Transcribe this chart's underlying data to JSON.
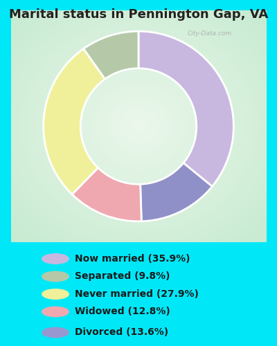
{
  "title": "Marital status in Pennington Gap, VA",
  "values": [
    35.9,
    13.6,
    12.8,
    27.9,
    9.8
  ],
  "pie_colors": [
    "#c8b8e0",
    "#9090c8",
    "#f0a8b0",
    "#f0f09a",
    "#b5c9a8"
  ],
  "legend_labels": [
    "Now married (35.9%)",
    "Separated (9.8%)",
    "Never married (27.9%)",
    "Widowed (12.8%)",
    "Divorced (13.6%)"
  ],
  "legend_colors": [
    "#c8b8e0",
    "#b5c9a8",
    "#f0f09a",
    "#f0a8b0",
    "#9898d0"
  ],
  "bg_outer": "#00e8f8",
  "title_fontsize": 13,
  "watermark": "City-Data.com",
  "start_angle": 90,
  "donut_width": 0.32
}
